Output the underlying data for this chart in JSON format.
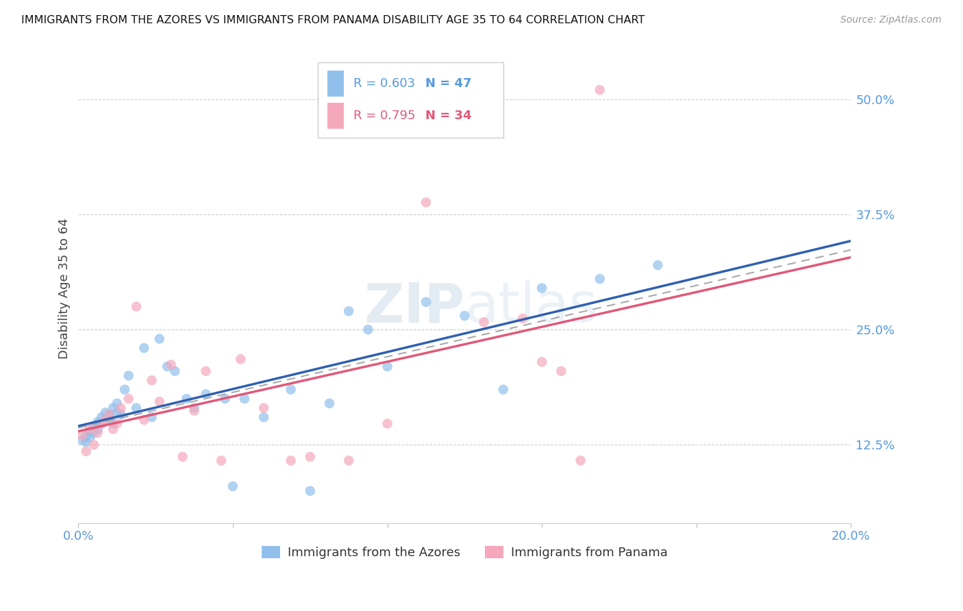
{
  "title": "IMMIGRANTS FROM THE AZORES VS IMMIGRANTS FROM PANAMA DISABILITY AGE 35 TO 64 CORRELATION CHART",
  "source": "Source: ZipAtlas.com",
  "ylabel": "Disability Age 35 to 64",
  "xlim": [
    0.0,
    0.2
  ],
  "ylim": [
    0.04,
    0.55
  ],
  "xticks": [
    0.0,
    0.04,
    0.08,
    0.12,
    0.16,
    0.2
  ],
  "xticklabels": [
    "0.0%",
    "",
    "",
    "",
    "",
    "20.0%"
  ],
  "yticks_right": [
    0.125,
    0.25,
    0.375,
    0.5
  ],
  "yticklabels_right": [
    "12.5%",
    "25.0%",
    "37.5%",
    "50.0%"
  ],
  "legend_r1": "R = 0.603",
  "legend_n1": "N = 47",
  "legend_r2": "R = 0.795",
  "legend_n2": "N = 34",
  "color_azores": "#92C0EC",
  "color_panama": "#F5A8BC",
  "color_line_azores": "#3060B0",
  "color_line_panama": "#E05878",
  "color_dashed": "#AAAAAA",
  "watermark": "ZIPatlas",
  "azores_x": [
    0.001,
    0.002,
    0.002,
    0.003,
    0.003,
    0.004,
    0.004,
    0.005,
    0.005,
    0.006,
    0.006,
    0.007,
    0.007,
    0.008,
    0.008,
    0.009,
    0.009,
    0.01,
    0.01,
    0.011,
    0.012,
    0.013,
    0.015,
    0.017,
    0.019,
    0.021,
    0.023,
    0.025,
    0.028,
    0.03,
    0.033,
    0.038,
    0.04,
    0.043,
    0.048,
    0.055,
    0.06,
    0.065,
    0.07,
    0.075,
    0.08,
    0.09,
    0.1,
    0.11,
    0.12,
    0.135,
    0.15
  ],
  "azores_y": [
    0.13,
    0.128,
    0.135,
    0.133,
    0.14,
    0.138,
    0.145,
    0.142,
    0.15,
    0.148,
    0.155,
    0.152,
    0.16,
    0.158,
    0.155,
    0.165,
    0.148,
    0.16,
    0.17,
    0.158,
    0.185,
    0.2,
    0.165,
    0.23,
    0.155,
    0.24,
    0.21,
    0.205,
    0.175,
    0.165,
    0.18,
    0.175,
    0.08,
    0.175,
    0.155,
    0.185,
    0.075,
    0.17,
    0.27,
    0.25,
    0.21,
    0.28,
    0.265,
    0.185,
    0.295,
    0.305,
    0.32
  ],
  "panama_x": [
    0.001,
    0.002,
    0.003,
    0.004,
    0.005,
    0.006,
    0.007,
    0.008,
    0.009,
    0.01,
    0.011,
    0.013,
    0.015,
    0.017,
    0.019,
    0.021,
    0.024,
    0.027,
    0.03,
    0.033,
    0.037,
    0.042,
    0.048,
    0.055,
    0.06,
    0.07,
    0.08,
    0.09,
    0.105,
    0.115,
    0.12,
    0.125,
    0.13,
    0.135
  ],
  "panama_y": [
    0.135,
    0.118,
    0.142,
    0.125,
    0.138,
    0.148,
    0.152,
    0.158,
    0.142,
    0.148,
    0.165,
    0.175,
    0.275,
    0.152,
    0.195,
    0.172,
    0.212,
    0.112,
    0.162,
    0.205,
    0.108,
    0.218,
    0.165,
    0.108,
    0.112,
    0.108,
    0.148,
    0.388,
    0.258,
    0.262,
    0.215,
    0.205,
    0.108,
    0.51
  ]
}
